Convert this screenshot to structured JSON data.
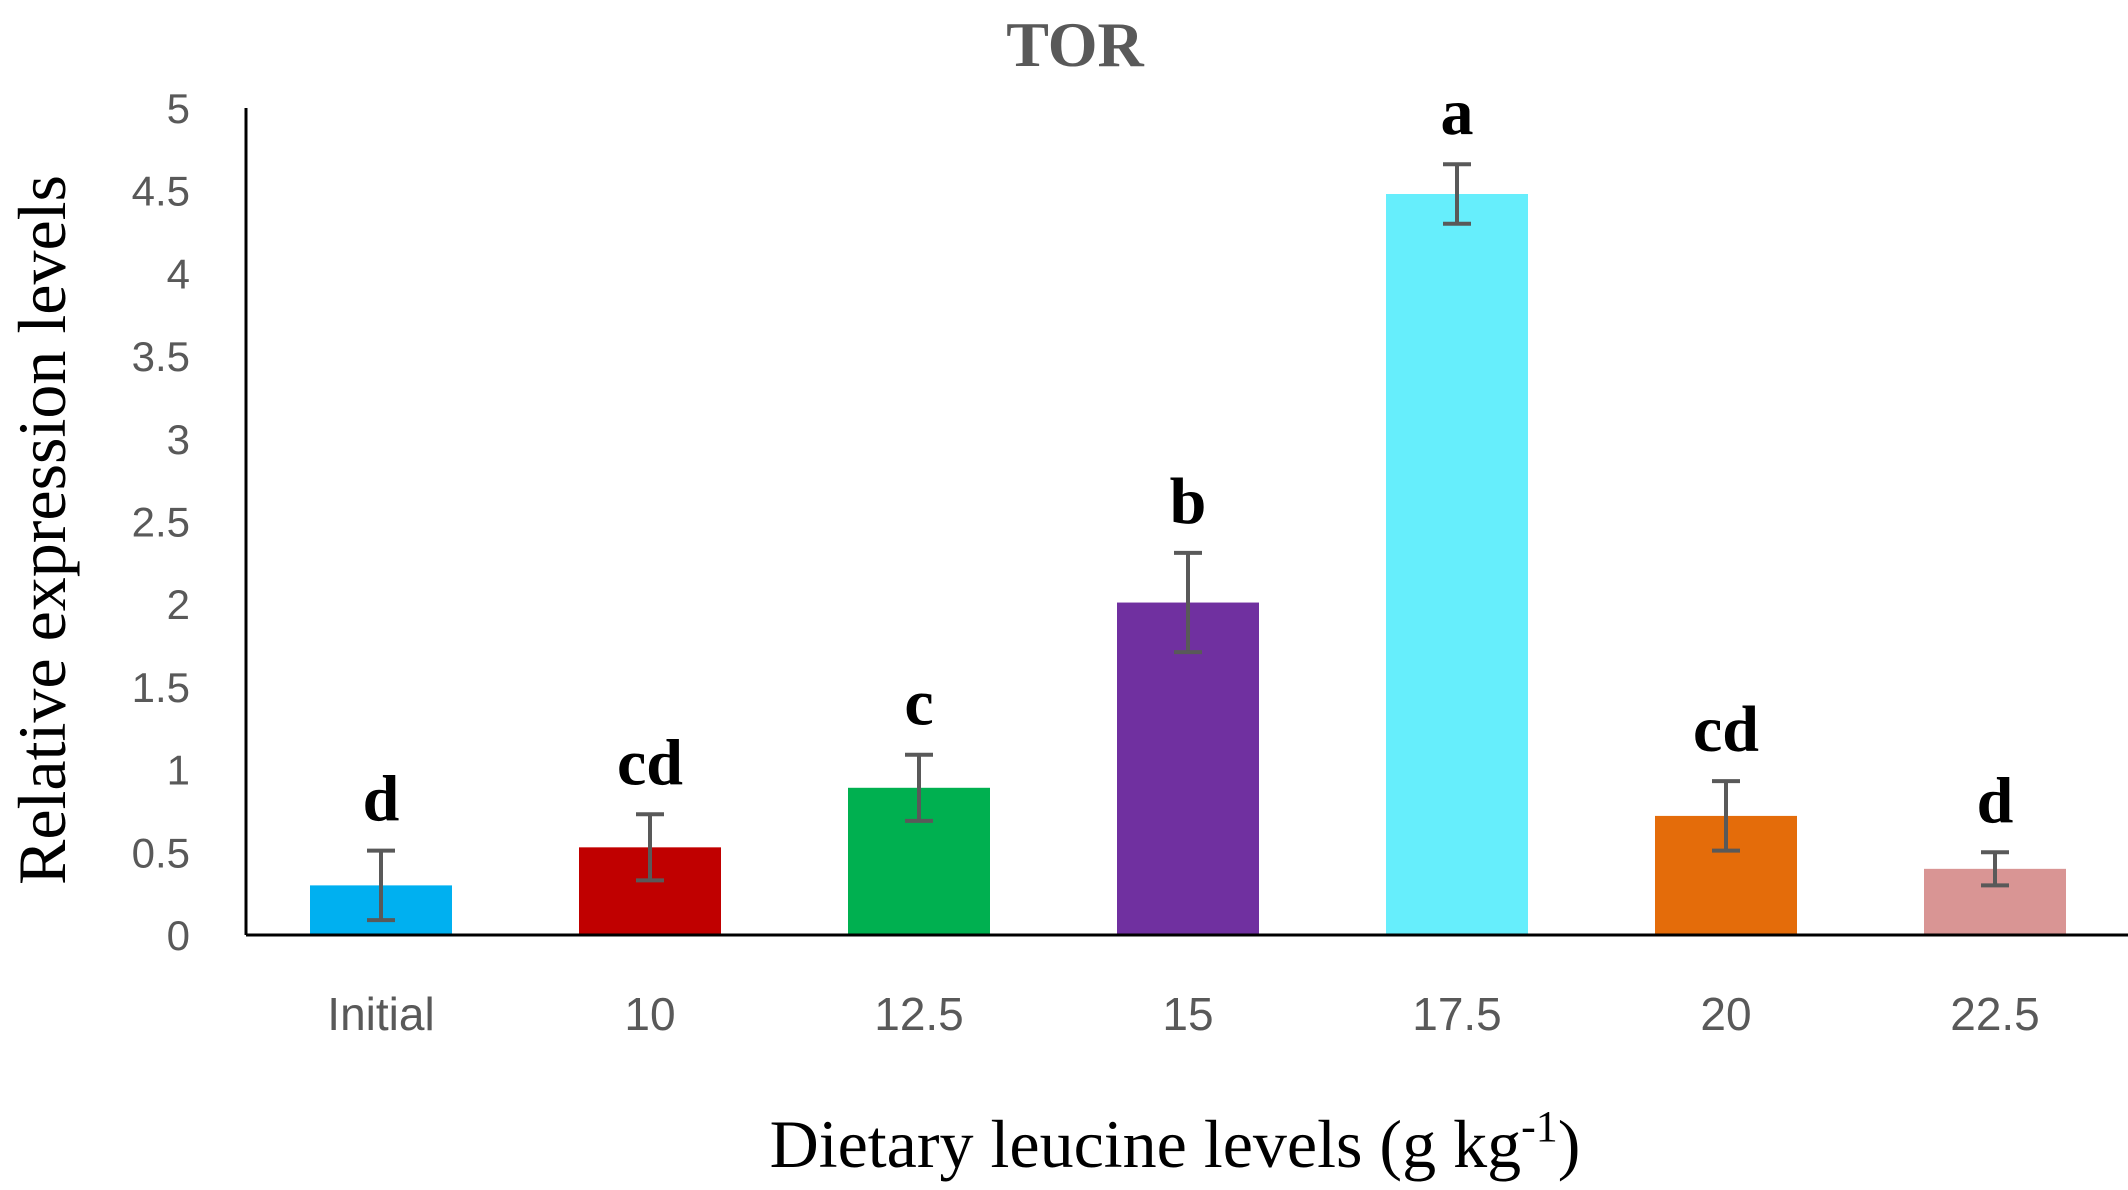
{
  "chart_data": {
    "type": "bar",
    "title": "TOR",
    "xlabel": "Dietary leucine levels (g kg",
    "xlabel_sup": "-1",
    "xlabel_end": ")",
    "ylabel": "Relative expression levels",
    "ylim": [
      0,
      5
    ],
    "yticks": [
      "0",
      "0.5",
      "1",
      "1.5",
      "2",
      "2.5",
      "3",
      "3.5",
      "4",
      "4.5",
      "5"
    ],
    "categories": [
      "Initial",
      "10",
      "12.5",
      "15",
      "17.5",
      "20",
      "22.5"
    ],
    "values": [
      0.3,
      0.53,
      0.89,
      2.01,
      4.48,
      0.72,
      0.4
    ],
    "error": [
      0.21,
      0.2,
      0.2,
      0.3,
      0.18,
      0.21,
      0.1
    ],
    "letters": [
      "d",
      "cd",
      "c",
      "b",
      "a",
      "cd",
      "d"
    ],
    "colors": [
      "#00B0F0",
      "#C00000",
      "#00B050",
      "#7030A0",
      "#66EEFC",
      "#E46C0A",
      "#D99594"
    ],
    "grid": false,
    "legend": "none"
  }
}
